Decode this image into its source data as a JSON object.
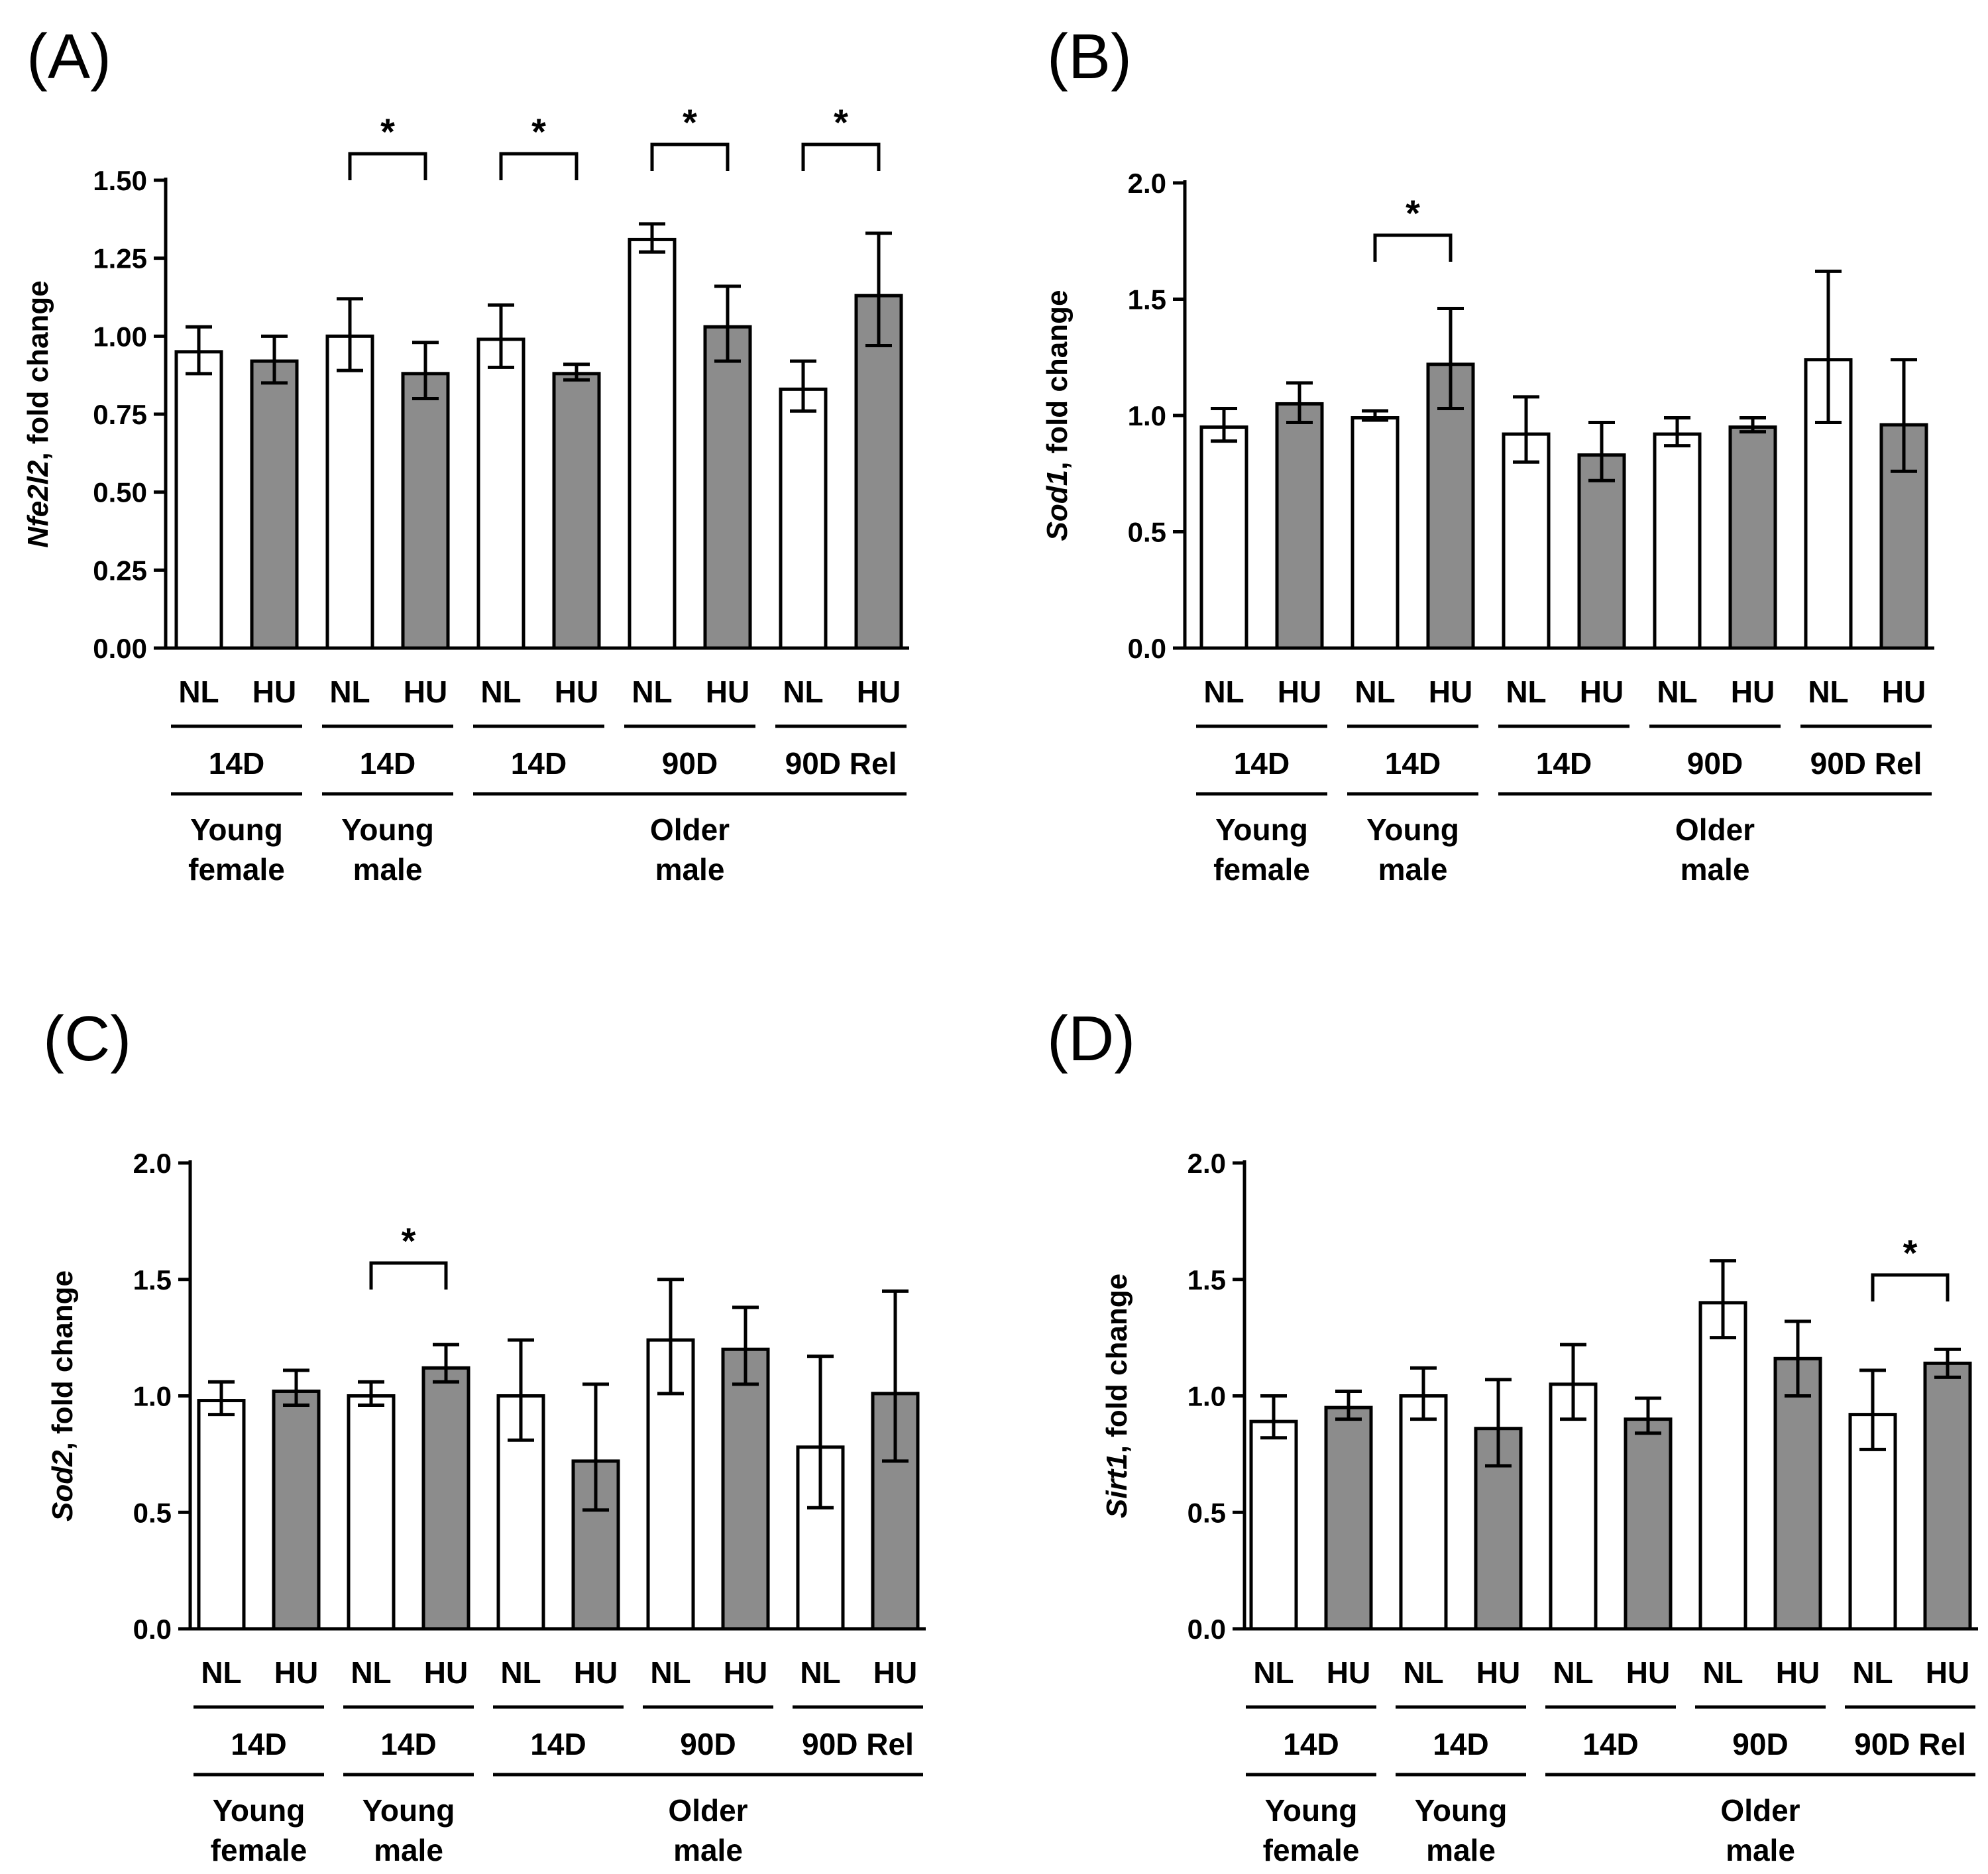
{
  "figure": {
    "colors": {
      "nl_fill": "#ffffff",
      "hu_fill": "#8c8c8c",
      "stroke": "#000000"
    },
    "panels": [
      {
        "label": "(A)",
        "ylabel_gene": "Nfe2l2",
        "ylabel_suffix": ", fold change",
        "yticks": [
          "0.00",
          "0.25",
          "0.50",
          "0.75",
          "1.00",
          "1.25",
          "1.50"
        ],
        "conditions": [
          "NL",
          "HU",
          "NL",
          "HU",
          "NL",
          "HU",
          "NL",
          "HU",
          "NL",
          "HU"
        ],
        "durations": [
          "14D",
          "14D",
          "14D",
          "90D",
          "90D Rel"
        ],
        "groups": [
          {
            "lines": [
              "Young",
              "female"
            ]
          },
          {
            "lines": [
              "Young",
              "male"
            ]
          },
          {
            "lines": [
              "Older",
              "male"
            ]
          }
        ],
        "sig_markers": [
          "*",
          "*",
          "*",
          "*"
        ]
      },
      {
        "label": "(B)",
        "ylabel_gene": "Sod1",
        "ylabel_suffix": ", fold change",
        "yticks": [
          "0.0",
          "0.5",
          "1.0",
          "1.5",
          "2.0"
        ],
        "conditions": [
          "NL",
          "HU",
          "NL",
          "HU",
          "NL",
          "HU",
          "NL",
          "HU",
          "NL",
          "HU"
        ],
        "durations": [
          "14D",
          "14D",
          "14D",
          "90D",
          "90D Rel"
        ],
        "groups": [
          {
            "lines": [
              "Young",
              "female"
            ]
          },
          {
            "lines": [
              "Young",
              "male"
            ]
          },
          {
            "lines": [
              "Older",
              "male"
            ]
          }
        ],
        "sig_markers": [
          "*"
        ]
      },
      {
        "label": "(C)",
        "ylabel_gene": "Sod2",
        "ylabel_suffix": ", fold change",
        "yticks": [
          "0.0",
          "0.5",
          "1.0",
          "1.5",
          "2.0"
        ],
        "conditions": [
          "NL",
          "HU",
          "NL",
          "HU",
          "NL",
          "HU",
          "NL",
          "HU",
          "NL",
          "HU"
        ],
        "durations": [
          "14D",
          "14D",
          "14D",
          "90D",
          "90D Rel"
        ],
        "groups": [
          {
            "lines": [
              "Young",
              "female"
            ]
          },
          {
            "lines": [
              "Young",
              "male"
            ]
          },
          {
            "lines": [
              "Older",
              "male"
            ]
          }
        ],
        "sig_markers": [
          "*"
        ]
      },
      {
        "label": "(D)",
        "ylabel_gene": "Sirt1",
        "ylabel_suffix": ", fold change",
        "yticks": [
          "0.0",
          "0.5",
          "1.0",
          "1.5",
          "2.0"
        ],
        "conditions": [
          "NL",
          "HU",
          "NL",
          "HU",
          "NL",
          "HU",
          "NL",
          "HU",
          "NL",
          "HU"
        ],
        "durations": [
          "14D",
          "14D",
          "14D",
          "90D",
          "90D Rel"
        ],
        "groups": [
          {
            "lines": [
              "Young",
              "female"
            ]
          },
          {
            "lines": [
              "Young",
              "male"
            ]
          },
          {
            "lines": [
              "Older",
              "male"
            ]
          }
        ],
        "sig_markers": [
          "*"
        ]
      }
    ]
  },
  "chart_data": [
    {
      "type": "bar",
      "title": "(A)",
      "ylabel": "Nfe2l2, fold change",
      "ylim": [
        0,
        1.5
      ],
      "categories": [
        "NL",
        "HU",
        "NL",
        "HU",
        "NL",
        "HU",
        "NL",
        "HU",
        "NL",
        "HU"
      ],
      "values": [
        0.95,
        0.92,
        1.0,
        0.88,
        0.99,
        0.88,
        1.31,
        1.03,
        0.83,
        1.13
      ],
      "error_low": [
        0.88,
        0.85,
        0.89,
        0.8,
        0.9,
        0.86,
        1.27,
        0.92,
        0.76,
        0.97
      ],
      "error_high": [
        1.03,
        1.0,
        1.12,
        0.98,
        1.1,
        0.91,
        1.36,
        1.16,
        0.92,
        1.33
      ],
      "fills": [
        "NL",
        "HU",
        "NL",
        "HU",
        "NL",
        "HU",
        "NL",
        "HU",
        "NL",
        "HU"
      ],
      "significance": [
        {
          "pair": [
            2,
            3
          ],
          "label": "*"
        },
        {
          "pair": [
            4,
            5
          ],
          "label": "*"
        },
        {
          "pair": [
            6,
            7
          ],
          "label": "*"
        },
        {
          "pair": [
            8,
            9
          ],
          "label": "*"
        }
      ]
    },
    {
      "type": "bar",
      "title": "(B)",
      "ylabel": "Sod1, fold change",
      "ylim": [
        0,
        2.0
      ],
      "categories": [
        "NL",
        "HU",
        "NL",
        "HU",
        "NL",
        "HU",
        "NL",
        "HU",
        "NL",
        "HU"
      ],
      "values": [
        0.95,
        1.05,
        0.99,
        1.22,
        0.92,
        0.83,
        0.92,
        0.95,
        1.24,
        0.96
      ],
      "error_low": [
        0.89,
        0.97,
        0.98,
        1.03,
        0.8,
        0.72,
        0.87,
        0.93,
        0.97,
        0.76
      ],
      "error_high": [
        1.03,
        1.14,
        1.02,
        1.46,
        1.08,
        0.97,
        0.99,
        0.99,
        1.62,
        1.24
      ],
      "fills": [
        "NL",
        "HU",
        "NL",
        "HU",
        "NL",
        "HU",
        "NL",
        "HU",
        "NL",
        "HU"
      ],
      "significance": [
        {
          "pair": [
            2,
            3
          ],
          "label": "*"
        }
      ]
    },
    {
      "type": "bar",
      "title": "(C)",
      "ylabel": "Sod2, fold change",
      "ylim": [
        0,
        2.0
      ],
      "categories": [
        "NL",
        "HU",
        "NL",
        "HU",
        "NL",
        "HU",
        "NL",
        "HU",
        "NL",
        "HU"
      ],
      "values": [
        0.98,
        1.02,
        1.0,
        1.12,
        1.0,
        0.72,
        1.24,
        1.2,
        0.78,
        1.01
      ],
      "error_low": [
        0.92,
        0.96,
        0.96,
        1.06,
        0.81,
        0.51,
        1.01,
        1.05,
        0.52,
        0.72
      ],
      "error_high": [
        1.06,
        1.11,
        1.06,
        1.22,
        1.24,
        1.05,
        1.5,
        1.38,
        1.17,
        1.45
      ],
      "fills": [
        "NL",
        "HU",
        "NL",
        "HU",
        "NL",
        "HU",
        "NL",
        "HU",
        "NL",
        "HU"
      ],
      "significance": [
        {
          "pair": [
            2,
            3
          ],
          "label": "*"
        }
      ]
    },
    {
      "type": "bar",
      "title": "(D)",
      "ylabel": "Sirt1, fold change",
      "ylim": [
        0,
        2.0
      ],
      "categories": [
        "NL",
        "HU",
        "NL",
        "HU",
        "NL",
        "HU",
        "NL",
        "HU",
        "NL",
        "HU"
      ],
      "values": [
        0.89,
        0.95,
        1.0,
        0.86,
        1.05,
        0.9,
        1.4,
        1.16,
        0.92,
        1.14
      ],
      "error_low": [
        0.82,
        0.9,
        0.9,
        0.7,
        0.9,
        0.84,
        1.25,
        1.0,
        0.77,
        1.08
      ],
      "error_high": [
        1.0,
        1.02,
        1.12,
        1.07,
        1.22,
        0.99,
        1.58,
        1.32,
        1.11,
        1.2
      ],
      "fills": [
        "NL",
        "HU",
        "NL",
        "HU",
        "NL",
        "HU",
        "NL",
        "HU",
        "NL",
        "HU"
      ],
      "significance": [
        {
          "pair": [
            8,
            9
          ],
          "label": "*"
        }
      ]
    }
  ]
}
